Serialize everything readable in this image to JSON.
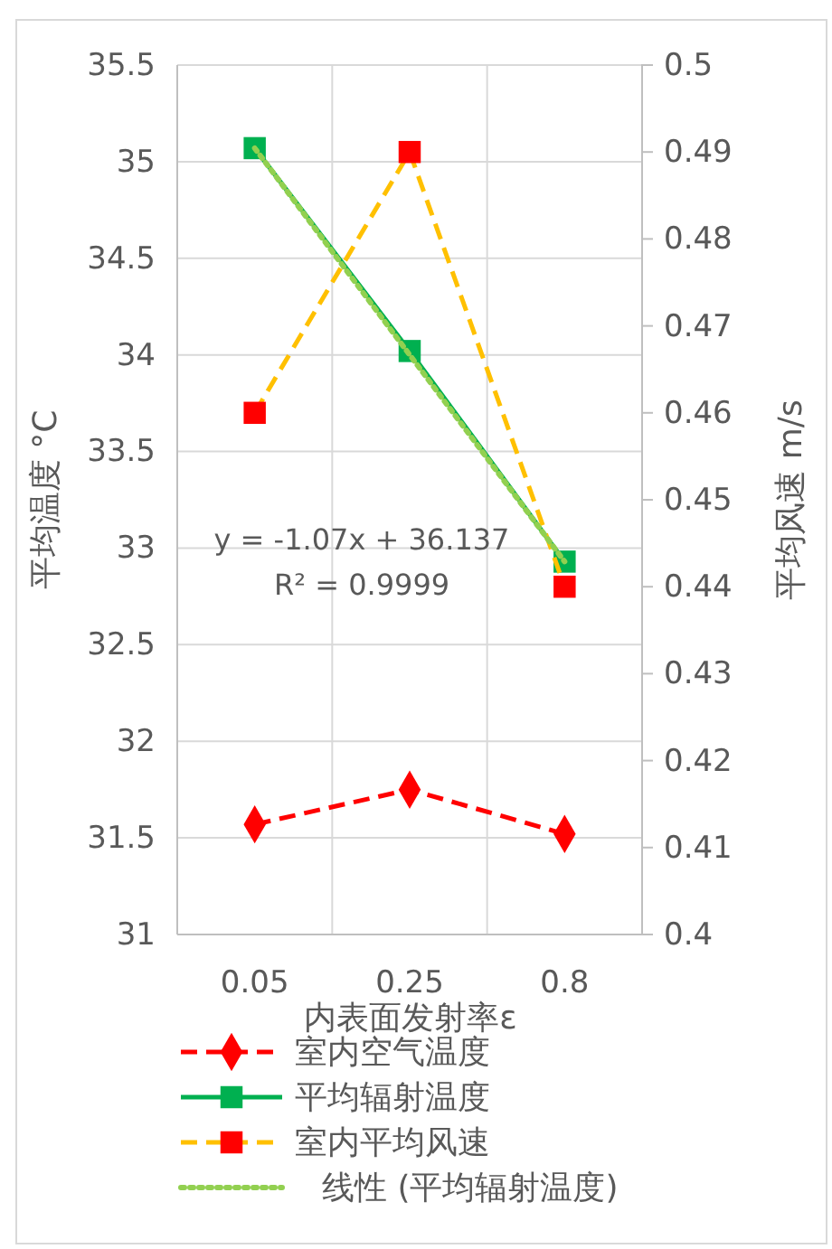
{
  "chart_data": {
    "type": "line",
    "xlabel": "内表面发射率ε",
    "ylabel": "平均温度 °C",
    "y2label": "平均风速 m/s",
    "categories": [
      "0.05",
      "0.25",
      "0.8"
    ],
    "ylim": [
      31,
      35.5
    ],
    "yticks": [
      31,
      31.5,
      32,
      32.5,
      33,
      33.5,
      34,
      34.5,
      35,
      35.5
    ],
    "y2lim": [
      0.4,
      0.5
    ],
    "y2ticks": [
      0.4,
      0.41,
      0.42,
      0.43,
      0.44,
      0.45,
      0.46,
      0.47,
      0.48,
      0.49,
      0.5
    ],
    "grid": true,
    "legend": "bottom",
    "annotations": [
      "y = -1.07x + 36.137",
      "R² = 0.9999"
    ],
    "series": [
      {
        "name": "室内空气温度",
        "color": "#ff0000",
        "values": [
          31.57,
          31.75,
          31.52
        ],
        "marker": "diamond",
        "line_style": "dashed"
      },
      {
        "name": "平均辐射温度",
        "color": "#00b050",
        "values": [
          35.07,
          34.02,
          32.93
        ],
        "marker": "square",
        "line_style": "solid"
      },
      {
        "name": "室内平均风速",
        "color": "#ffc000",
        "colors": [
          "#ff0000",
          "#ff0000",
          "#ff0000"
        ],
        "values": [
          0.46,
          0.49,
          0.44
        ],
        "axis": "y2",
        "marker": "square",
        "line_style": "dashed"
      },
      {
        "name": "线性 (平均辐射温度)",
        "color": "#92d050",
        "values": [
          35.07,
          34.0,
          32.93
        ],
        "marker": "none",
        "line_style": "dotted"
      }
    ]
  }
}
